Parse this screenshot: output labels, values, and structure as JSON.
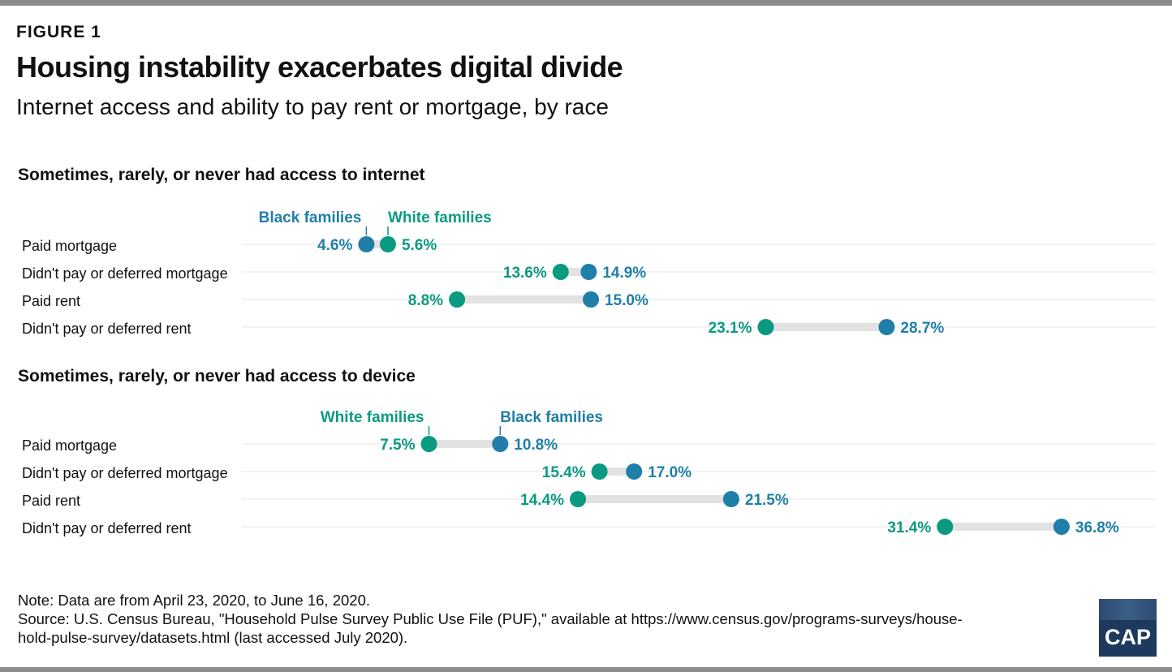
{
  "figure_label": "FIGURE 1",
  "title": "Housing instability exacerbates digital divide",
  "subtitle": "Internet access and ability to pay rent or mortgage, by race",
  "colors": {
    "black_families": "#1f7fa8",
    "white_families": "#0a9a80",
    "connector": "#e2e2e2",
    "gridline": "#e6e6e6"
  },
  "chart_data": [
    {
      "type": "dumbbell",
      "title": "Sometimes, rarely, or never had access to internet",
      "legend_labels": {
        "first": "Black families",
        "second": "White families"
      },
      "categories": [
        "Paid mortgage",
        "Didn't pay or deferred mortgage",
        "Paid rent",
        "Didn't pay or deferred rent"
      ],
      "series": [
        {
          "name": "Black families",
          "values": [
            4.6,
            14.9,
            15.0,
            28.7
          ],
          "labels": [
            "4.6%",
            "14.9%",
            "15.0%",
            "28.7%"
          ]
        },
        {
          "name": "White families",
          "values": [
            5.6,
            13.6,
            8.8,
            23.1
          ],
          "labels": [
            "5.6%",
            "13.6%",
            "8.8%",
            "23.1%"
          ]
        }
      ],
      "xlim": [
        0,
        40
      ]
    },
    {
      "type": "dumbbell",
      "title": "Sometimes, rarely, or never had access to device",
      "legend_labels": {
        "first": "White families",
        "second": "Black families"
      },
      "categories": [
        "Paid mortgage",
        "Didn't pay or deferred mortgage",
        "Paid rent",
        "Didn't pay or deferred rent"
      ],
      "series": [
        {
          "name": "Black families",
          "values": [
            10.8,
            17.0,
            21.5,
            36.8
          ],
          "labels": [
            "10.8%",
            "17.0%",
            "21.5%",
            "36.8%"
          ]
        },
        {
          "name": "White families",
          "values": [
            7.5,
            15.4,
            14.4,
            31.4
          ],
          "labels": [
            "7.5%",
            "15.4%",
            "14.4%",
            "31.4%"
          ]
        }
      ],
      "xlim": [
        0,
        40
      ]
    }
  ],
  "notes": {
    "note": "Note: Data are from April 23, 2020, to June 16, 2020.",
    "source_line1": "Source: U.S. Census Bureau, \"Household Pulse Survey Public Use File (PUF),\" available at https://www.census.gov/programs-surveys/house-",
    "source_line2": "hold-pulse-survey/datasets.html (last accessed July 2020)."
  },
  "logo_text": "CAP"
}
